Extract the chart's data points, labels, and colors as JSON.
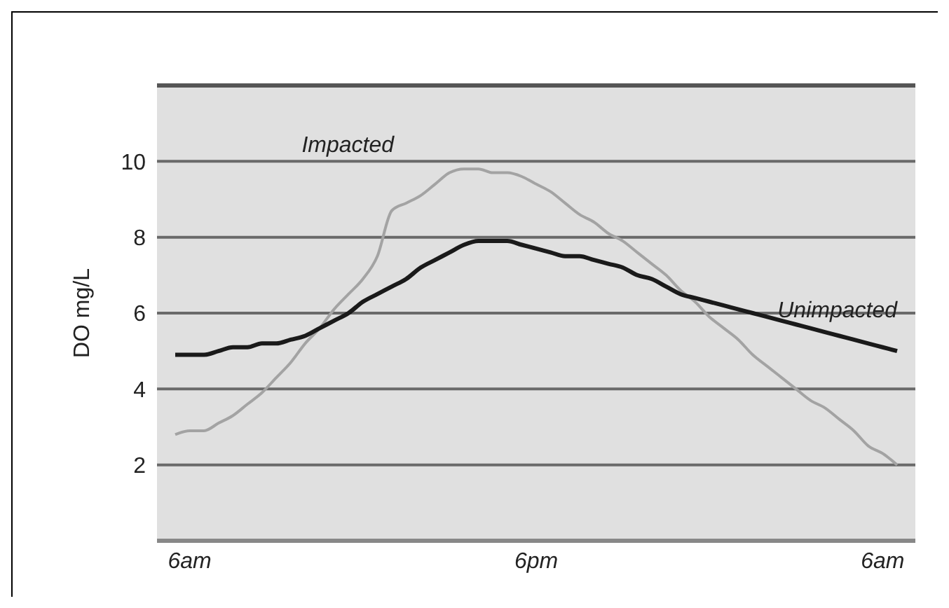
{
  "chart_data": {
    "type": "line",
    "ylabel": "DO mg/L",
    "categories": [
      null,
      "6am",
      null,
      null,
      null,
      null,
      null,
      null,
      null,
      null,
      null,
      null,
      null,
      null,
      null,
      null,
      null,
      null,
      null,
      null,
      null,
      null,
      null,
      null,
      null,
      "6pm",
      null,
      null,
      null,
      null,
      null,
      null,
      null,
      null,
      null,
      null,
      null,
      null,
      null,
      null,
      null,
      null,
      null,
      null,
      null,
      null,
      null,
      null,
      null,
      "6am",
      null
    ],
    "ylim": [
      0,
      12
    ],
    "yticks": [
      2,
      4,
      6,
      8,
      10
    ],
    "grid": "y",
    "series": [
      {
        "name": "Impacted",
        "color": "#a3a3a3",
        "values": [
          2.8,
          2.9,
          2.9,
          3.1,
          3.3,
          3.6,
          3.9,
          4.3,
          4.7,
          5.2,
          5.6,
          6.1,
          6.5,
          6.9,
          7.5,
          8.7,
          8.9,
          9.1,
          9.4,
          9.7,
          9.8,
          9.8,
          9.7,
          9.7,
          9.6,
          9.4,
          9.2,
          8.9,
          8.6,
          8.4,
          8.1,
          7.9,
          7.6,
          7.3,
          7.0,
          6.6,
          6.3,
          5.9,
          5.6,
          5.3,
          4.9,
          4.6,
          4.3,
          4.0,
          3.7,
          3.5,
          3.2,
          2.9,
          2.5,
          2.3,
          2.0
        ]
      },
      {
        "name": "Unimpacted",
        "color": "#1a1a1a",
        "values": [
          4.9,
          4.9,
          4.9,
          5.0,
          5.1,
          5.1,
          5.2,
          5.2,
          5.3,
          5.4,
          5.6,
          5.8,
          6.0,
          6.3,
          6.5,
          6.7,
          6.9,
          7.2,
          7.4,
          7.6,
          7.8,
          7.9,
          7.9,
          7.9,
          7.8,
          7.7,
          7.6,
          7.5,
          7.5,
          7.4,
          7.3,
          7.2,
          7.0,
          6.9,
          6.7,
          6.5,
          6.4,
          6.3,
          6.2,
          6.1,
          6.0,
          5.9,
          5.8,
          5.7,
          5.6,
          5.5,
          5.4,
          5.3,
          5.2,
          5.1,
          5.0
        ]
      }
    ]
  }
}
